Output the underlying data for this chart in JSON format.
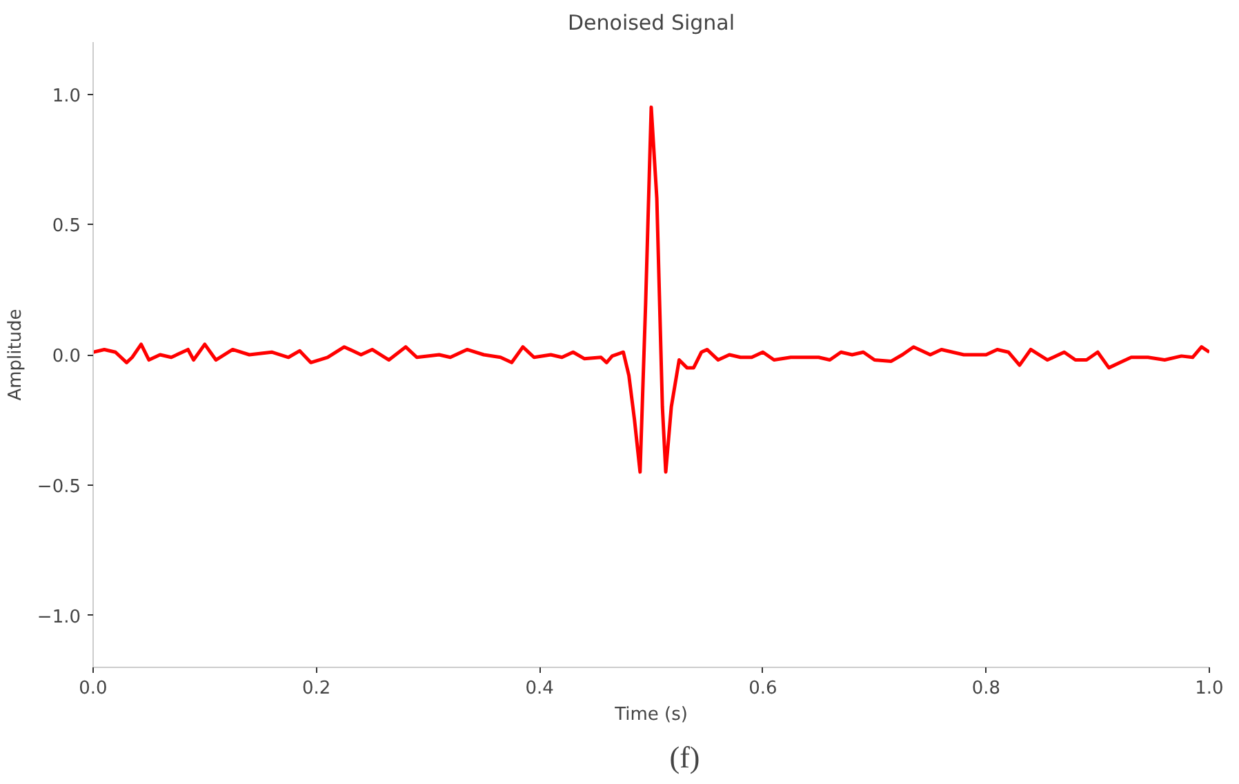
{
  "chart_data": {
    "type": "line",
    "title": "Denoised Signal",
    "xlabel": "Time (s)",
    "ylabel": "Amplitude",
    "annotations": [
      "(f)"
    ],
    "xlim": [
      0,
      1
    ],
    "ylim": [
      -1.2,
      1.2
    ],
    "xticks": [
      {
        "value": 0,
        "label": "0.0"
      },
      {
        "value": 0.2,
        "label": "0.2"
      },
      {
        "value": 0.4,
        "label": "0.4"
      },
      {
        "value": 0.6,
        "label": "0.6"
      },
      {
        "value": 0.8,
        "label": "0.8"
      },
      {
        "value": 1,
        "label": "1.0"
      }
    ],
    "yticks": [
      {
        "value": -1,
        "label": "−1.0"
      },
      {
        "value": -0.5,
        "label": "−0.5"
      },
      {
        "value": 0,
        "label": "0.0"
      },
      {
        "value": 0.5,
        "label": "0.5"
      },
      {
        "value": 1,
        "label": "1.0"
      }
    ],
    "grid": false,
    "marker": "none",
    "line_style": "solid",
    "x": [
      0,
      0.01,
      0.02,
      0.03,
      0.035,
      0.043,
      0.05,
      0.06,
      0.07,
      0.085,
      0.09,
      0.1,
      0.11,
      0.125,
      0.14,
      0.16,
      0.175,
      0.185,
      0.195,
      0.21,
      0.225,
      0.24,
      0.25,
      0.265,
      0.28,
      0.29,
      0.31,
      0.32,
      0.335,
      0.35,
      0.365,
      0.375,
      0.385,
      0.395,
      0.41,
      0.42,
      0.43,
      0.44,
      0.455,
      0.46,
      0.465,
      0.475,
      0.48,
      0.485,
      0.49,
      0.495,
      0.5,
      0.505,
      0.51,
      0.513,
      0.518,
      0.525,
      0.532,
      0.538,
      0.545,
      0.55,
      0.56,
      0.57,
      0.58,
      0.59,
      0.6,
      0.61,
      0.625,
      0.64,
      0.65,
      0.66,
      0.67,
      0.68,
      0.69,
      0.7,
      0.715,
      0.725,
      0.735,
      0.75,
      0.76,
      0.78,
      0.8,
      0.81,
      0.82,
      0.83,
      0.84,
      0.855,
      0.87,
      0.88,
      0.89,
      0.9,
      0.91,
      0.92,
      0.93,
      0.945,
      0.96,
      0.975,
      0.985,
      0.993,
      1.0
    ],
    "series": [
      {
        "color": "#ff0000",
        "values": [
          0.01,
          0.02,
          0.01,
          -0.03,
          -0.01,
          0.04,
          -0.02,
          0.0,
          -0.01,
          0.02,
          -0.02,
          0.04,
          -0.02,
          0.02,
          0.0,
          0.01,
          -0.01,
          0.015,
          -0.03,
          -0.01,
          0.03,
          0.0,
          0.02,
          -0.02,
          0.03,
          -0.01,
          0.0,
          -0.01,
          0.02,
          0.0,
          -0.01,
          -0.03,
          0.03,
          -0.01,
          0.0,
          -0.01,
          0.01,
          -0.015,
          -0.01,
          -0.03,
          -0.005,
          0.01,
          -0.08,
          -0.25,
          -0.45,
          0.2,
          0.95,
          0.6,
          -0.2,
          -0.45,
          -0.2,
          -0.02,
          -0.05,
          -0.05,
          0.01,
          0.02,
          -0.02,
          0.0,
          -0.01,
          -0.01,
          0.01,
          -0.02,
          -0.01,
          -0.01,
          -0.01,
          -0.02,
          0.01,
          0.0,
          0.01,
          -0.02,
          -0.025,
          0.0,
          0.03,
          0.0,
          0.02,
          0.0,
          0.0,
          0.02,
          0.01,
          -0.04,
          0.02,
          -0.02,
          0.01,
          -0.02,
          -0.02,
          0.01,
          -0.05,
          -0.03,
          -0.01,
          -0.01,
          -0.02,
          -0.005,
          -0.01,
          0.03,
          0.01
        ]
      }
    ]
  }
}
